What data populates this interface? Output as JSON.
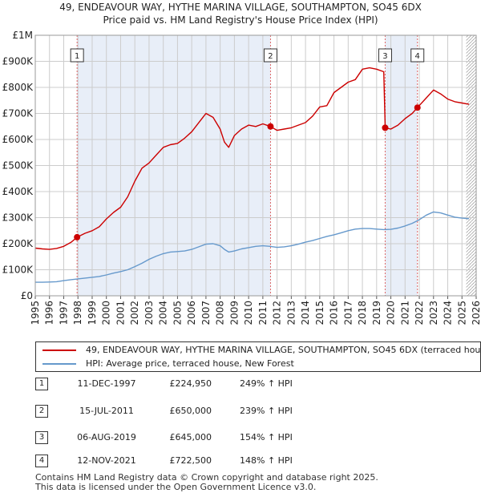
{
  "title": {
    "line1": "49, ENDEAVOUR WAY, HYTHE MARINA VILLAGE, SOUTHAMPTON, SO45 6DX",
    "line2": "Price paid vs. HM Land Registry's House Price Index (HPI)"
  },
  "colors": {
    "property": "#cc0000",
    "hpi": "#6699cc",
    "shade": "#e8eef8",
    "grid": "#cccccc"
  },
  "chart_data": {
    "type": "line",
    "xlim": [
      1995,
      2026
    ],
    "ylim": [
      0,
      1000000
    ],
    "y_ticks": [
      {
        "value": 0,
        "label": "£0"
      },
      {
        "value": 100000,
        "label": "£100K"
      },
      {
        "value": 200000,
        "label": "£200K"
      },
      {
        "value": 300000,
        "label": "£300K"
      },
      {
        "value": 400000,
        "label": "£400K"
      },
      {
        "value": 500000,
        "label": "£500K"
      },
      {
        "value": 600000,
        "label": "£600K"
      },
      {
        "value": 700000,
        "label": "£700K"
      },
      {
        "value": 800000,
        "label": "£800K"
      },
      {
        "value": 900000,
        "label": "£900K"
      },
      {
        "value": 1000000,
        "label": "£1M"
      }
    ],
    "x_ticks": [
      "1995",
      "1996",
      "1997",
      "1998",
      "1999",
      "2000",
      "2001",
      "2002",
      "2003",
      "2004",
      "2005",
      "2006",
      "2007",
      "2008",
      "2009",
      "2010",
      "2011",
      "2012",
      "2013",
      "2014",
      "2015",
      "2016",
      "2017",
      "2018",
      "2019",
      "2020",
      "2021",
      "2022",
      "2023",
      "2024",
      "2025",
      "2026"
    ],
    "shaded_ranges": [
      [
        1997.94,
        2011.54
      ],
      [
        2019.6,
        2021.87
      ]
    ],
    "hatched_from": 2025.3,
    "series": [
      {
        "name": "49, ENDEAVOUR WAY, HYTHE MARINA VILLAGE, SOUTHAMPTON, SO45 6DX (terraced house)",
        "color": "#cc0000",
        "x": [
          1995.0,
          1995.5,
          1996.0,
          1996.5,
          1997.0,
          1997.5,
          1997.94,
          1998.5,
          1999.0,
          1999.5,
          2000.0,
          2000.5,
          2001.0,
          2001.5,
          2002.0,
          2002.5,
          2003.0,
          2003.5,
          2004.0,
          2004.5,
          2005.0,
          2005.5,
          2006.0,
          2006.5,
          2007.0,
          2007.5,
          2008.0,
          2008.3,
          2008.6,
          2009.0,
          2009.2,
          2009.5,
          2010.0,
          2010.5,
          2011.0,
          2011.54,
          2012.0,
          2012.5,
          2013.0,
          2013.5,
          2014.0,
          2014.5,
          2015.0,
          2015.5,
          2016.0,
          2016.5,
          2017.0,
          2017.5,
          2018.0,
          2018.5,
          2019.0,
          2019.5,
          2019.6,
          2020.0,
          2020.5,
          2021.0,
          2021.5,
          2021.87,
          2022.5,
          2023.0,
          2023.5,
          2024.0,
          2024.5,
          2025.0,
          2025.5
        ],
        "y": [
          183000,
          180000,
          178000,
          182000,
          190000,
          205000,
          224950,
          240000,
          250000,
          265000,
          295000,
          320000,
          340000,
          380000,
          440000,
          490000,
          510000,
          540000,
          570000,
          580000,
          585000,
          605000,
          630000,
          665000,
          700000,
          685000,
          640000,
          590000,
          570000,
          615000,
          625000,
          640000,
          655000,
          650000,
          660000,
          650000,
          635000,
          640000,
          645000,
          655000,
          665000,
          690000,
          725000,
          730000,
          780000,
          800000,
          820000,
          830000,
          870000,
          875000,
          870000,
          860000,
          645000,
          640000,
          655000,
          680000,
          700000,
          722500,
          760000,
          790000,
          775000,
          755000,
          745000,
          740000,
          735000
        ]
      },
      {
        "name": "HPI: Average price, terraced house, New Forest",
        "color": "#6699cc",
        "x": [
          1995.0,
          1995.5,
          1996.0,
          1996.5,
          1997.0,
          1997.5,
          1998.0,
          1998.5,
          1999.0,
          1999.5,
          2000.0,
          2000.5,
          2001.0,
          2001.5,
          2002.0,
          2002.5,
          2003.0,
          2003.5,
          2004.0,
          2004.5,
          2005.0,
          2005.5,
          2006.0,
          2006.5,
          2007.0,
          2007.5,
          2008.0,
          2008.3,
          2008.6,
          2009.0,
          2009.5,
          2010.0,
          2010.5,
          2011.0,
          2011.5,
          2012.0,
          2012.5,
          2013.0,
          2013.5,
          2014.0,
          2014.5,
          2015.0,
          2015.5,
          2016.0,
          2016.5,
          2017.0,
          2017.5,
          2018.0,
          2018.5,
          2019.0,
          2019.5,
          2020.0,
          2020.5,
          2021.0,
          2021.5,
          2022.0,
          2022.5,
          2023.0,
          2023.5,
          2024.0,
          2024.5,
          2025.0,
          2025.5
        ],
        "y": [
          52000,
          52000,
          53000,
          54000,
          58000,
          62000,
          65000,
          68000,
          71000,
          74000,
          80000,
          87000,
          93000,
          100000,
          112000,
          125000,
          140000,
          152000,
          162000,
          168000,
          170000,
          172000,
          178000,
          188000,
          198000,
          200000,
          192000,
          178000,
          168000,
          172000,
          180000,
          185000,
          190000,
          192000,
          190000,
          186000,
          188000,
          192000,
          198000,
          206000,
          212000,
          220000,
          228000,
          234000,
          242000,
          250000,
          256000,
          258000,
          258000,
          256000,
          254000,
          255000,
          260000,
          268000,
          278000,
          292000,
          310000,
          322000,
          318000,
          310000,
          302000,
          298000,
          296000
        ]
      }
    ],
    "sales": [
      {
        "num": "1",
        "x": 1997.94,
        "y": 224950,
        "date": "11-DEC-1997",
        "price": "£224,950",
        "hpi": "249% ↑ HPI"
      },
      {
        "num": "2",
        "x": 2011.54,
        "y": 650000,
        "date": "15-JUL-2011",
        "price": "£650,000",
        "hpi": "239% ↑ HPI"
      },
      {
        "num": "3",
        "x": 2019.6,
        "y": 645000,
        "date": "06-AUG-2019",
        "price": "£645,000",
        "hpi": "154% ↑ HPI"
      },
      {
        "num": "4",
        "x": 2021.87,
        "y": 722500,
        "date": "12-NOV-2021",
        "price": "£722,500",
        "hpi": "148% ↑ HPI"
      }
    ]
  },
  "legend": {
    "property": "49, ENDEAVOUR WAY, HYTHE MARINA VILLAGE, SOUTHAMPTON, SO45 6DX (terraced house)",
    "hpi": "HPI: Average price, terraced house, New Forest"
  },
  "footer": {
    "line1": "Contains HM Land Registry data © Crown copyright and database right 2025.",
    "line2": "This data is licensed under the Open Government Licence v3.0."
  }
}
